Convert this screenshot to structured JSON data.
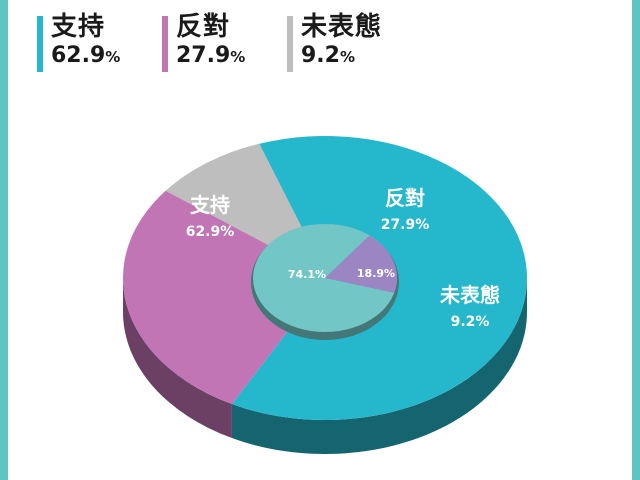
{
  "colors": {
    "frame": "#5cc6c2",
    "support": "#25b7cc",
    "oppose": "#c275b5",
    "neutral": "#bebebe",
    "inner_main": "#72c7c6",
    "inner_small": "#9b85c2"
  },
  "legend": [
    {
      "label": "支持",
      "value": "62.9",
      "unit": "%",
      "color": "#25b7cc"
    },
    {
      "label": "反對",
      "value": "27.9",
      "unit": "%",
      "color": "#c275b5"
    },
    {
      "label": "未表態",
      "value": "9.2",
      "unit": "%",
      "color": "#bebebe"
    }
  ],
  "chart_data": {
    "type": "pie",
    "outer_ring": {
      "categories": [
        "支持",
        "反對",
        "未表態"
      ],
      "values": [
        62.9,
        27.9,
        9.2
      ],
      "labels": [
        "62.9%",
        "27.9%",
        "9.2%"
      ]
    },
    "inner_pie": {
      "values": [
        74.1,
        18.9
      ],
      "labels": [
        "74.1%",
        "18.9%"
      ]
    }
  }
}
